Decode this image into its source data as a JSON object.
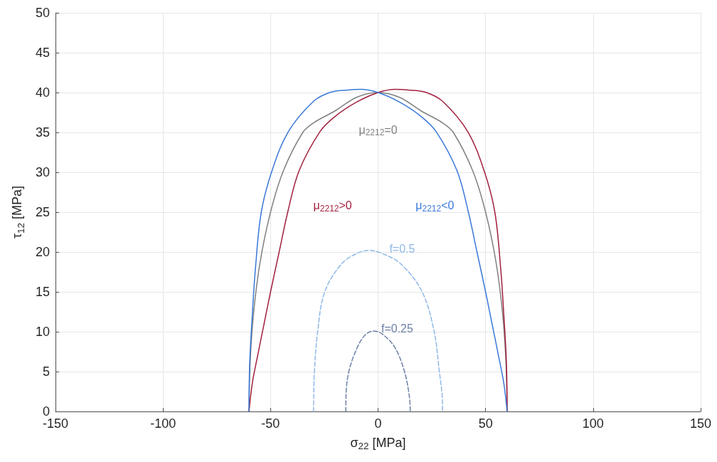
{
  "chart_data": {
    "type": "line",
    "xlabel": "σ$_{22}$ [MPa]",
    "ylabel": "τ$_{12}$ [MPa]",
    "xlim": [
      -150,
      150
    ],
    "xticks": [
      -150,
      -100,
      -50,
      0,
      50,
      100,
      150
    ],
    "ylim": [
      0,
      50
    ],
    "yticks": [
      0,
      5,
      10,
      15,
      20,
      25,
      30,
      35,
      40,
      45,
      50
    ],
    "grid": true,
    "marker": "none",
    "series": [
      {
        "name": "μ$_{2212}$=0",
        "color": "#808080",
        "line_style": "solid",
        "x": [
          -60,
          -59.5,
          -58,
          -55,
          -50,
          -44,
          -35,
          -30,
          -20,
          -10,
          0,
          10,
          20,
          30,
          35,
          44,
          50,
          55,
          58,
          59.5,
          60
        ],
        "values": [
          0,
          6,
          12,
          18.5,
          25,
          30.2,
          35,
          36.2,
          37.7,
          39.4,
          40,
          39.4,
          37.7,
          36.2,
          35,
          30.2,
          25,
          18.5,
          12,
          6,
          0
        ]
      },
      {
        "name": "μ$_{2212}$>0",
        "color": "#a2203e",
        "line_style": "solid",
        "x": [
          -60,
          -58.5,
          -56,
          -53,
          -50,
          -46,
          -42,
          -36.7,
          -27,
          -20,
          -10,
          0,
          8,
          15,
          22.5,
          30,
          41.7,
          49.3,
          54.3,
          57,
          58.5,
          59.7,
          60
        ],
        "values": [
          0,
          3.5,
          7,
          11,
          15,
          20,
          25,
          30.2,
          35.1,
          37,
          38.8,
          40,
          40.4,
          40.3,
          40,
          38.9,
          35.1,
          30.2,
          25,
          18,
          12,
          6,
          0
        ]
      },
      {
        "name": "μ$_{2212}$<0",
        "color": "#3a78d8",
        "line_style": "solid",
        "x": [
          -60,
          -59.7,
          -58.5,
          -57,
          -54.3,
          -49.3,
          -41.7,
          -30,
          -22.5,
          -15,
          -8,
          0,
          10,
          20,
          27,
          36.7,
          42,
          46,
          50,
          53,
          56,
          58.5,
          60
        ],
        "values": [
          0,
          6,
          12,
          18,
          25,
          30.2,
          35.1,
          38.9,
          40,
          40.3,
          40.4,
          40,
          38.8,
          37,
          35.1,
          30.2,
          25,
          20,
          15,
          11,
          7,
          3.5,
          0
        ]
      },
      {
        "name": "f=0.5",
        "color": "#8fb8e8",
        "line_style": "dashed",
        "x": [
          -30,
          -29.9,
          -29.6,
          -28.1,
          -24.8,
          -17,
          -10,
          -4,
          2,
          10.6,
          20.5,
          26.1,
          28.5,
          29.8,
          30
        ],
        "values": [
          0,
          2,
          5,
          10,
          15,
          18.5,
          19.8,
          20.2,
          19.8,
          18.5,
          15,
          10,
          5,
          2,
          0
        ]
      },
      {
        "name": "f=0.25",
        "color": "#6b80a8",
        "line_style": "dashed",
        "x": [
          -15,
          -14.9,
          -13.6,
          -9.7,
          -6,
          -2,
          2,
          7.9,
          12.3,
          14.5,
          15
        ],
        "values": [
          0,
          2,
          5,
          8,
          9.6,
          10.1,
          9.7,
          8,
          5,
          2,
          0
        ]
      }
    ]
  }
}
